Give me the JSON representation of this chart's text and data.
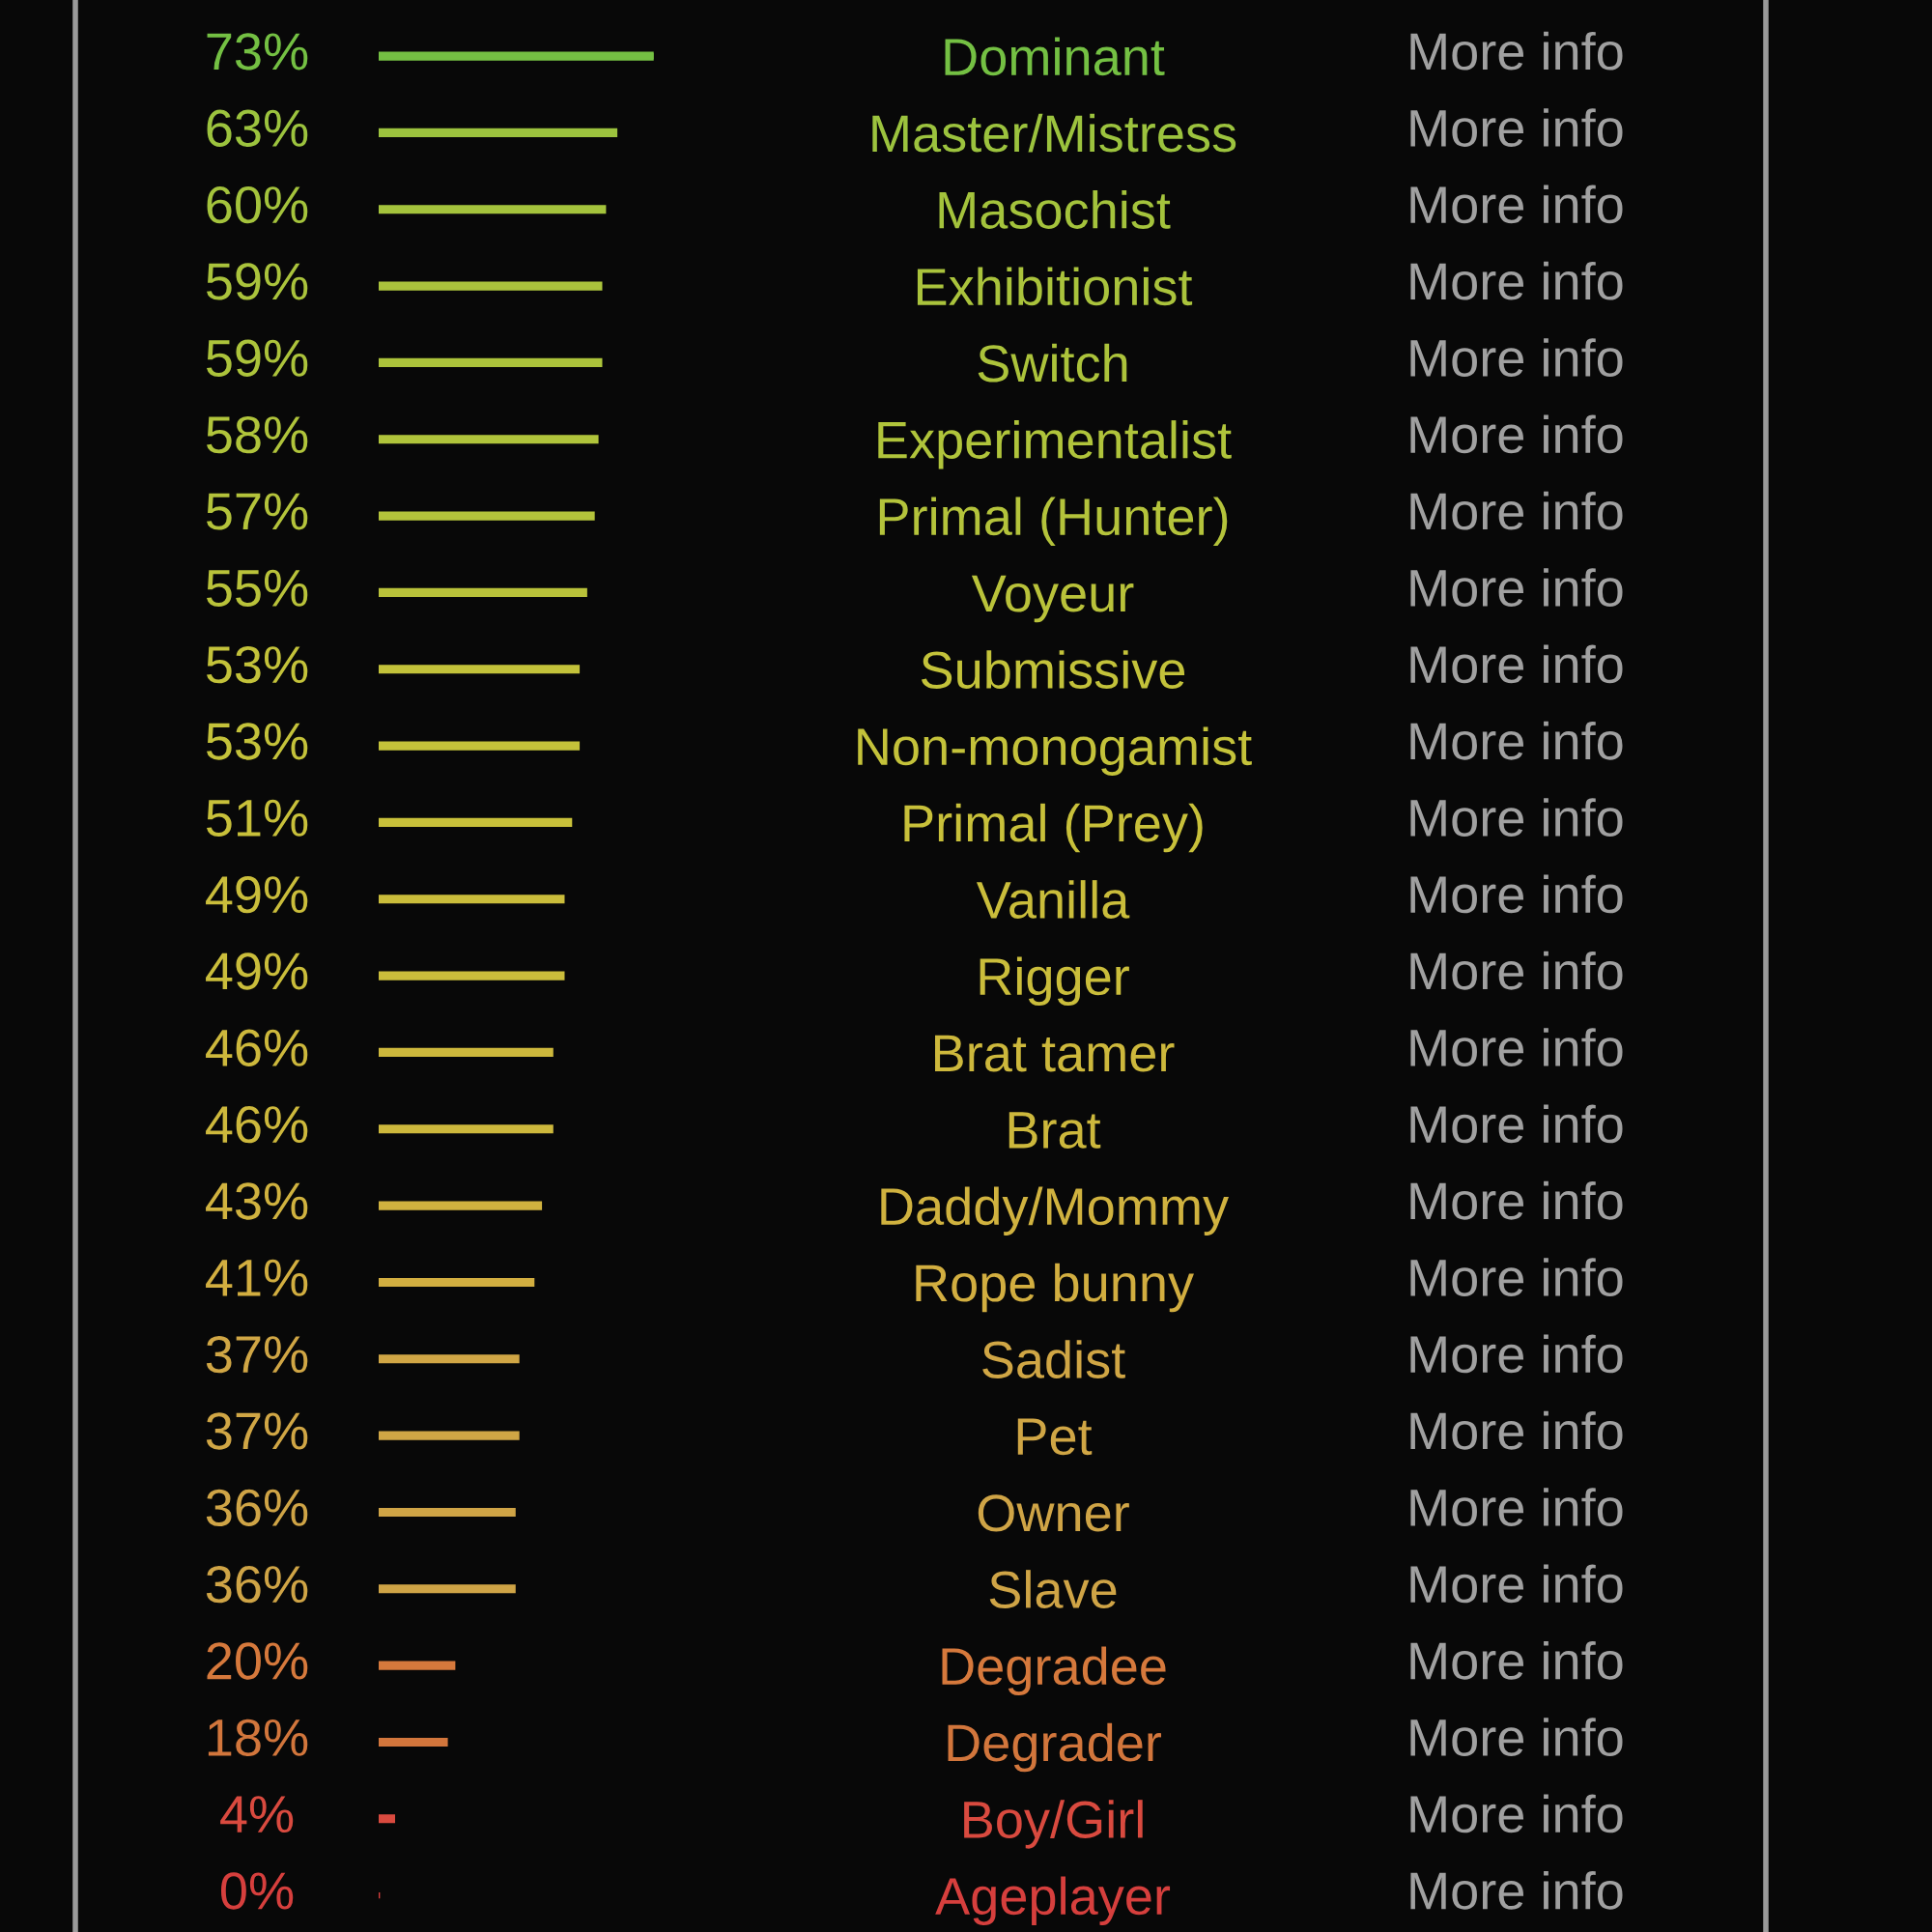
{
  "chart_data": {
    "type": "bar",
    "orientation": "horizontal",
    "tick_labels": "y",
    "grid": false,
    "legend": false,
    "categories": [
      "Dominant",
      "Master/Mistress",
      "Masochist",
      "Exhibitionist",
      "Switch",
      "Experimentalist",
      "Primal (Hunter)",
      "Voyeur",
      "Submissive",
      "Non-monogamist",
      "Primal (Prey)",
      "Vanilla",
      "Rigger",
      "Brat tamer",
      "Brat",
      "Daddy/Mommy",
      "Rope bunny",
      "Sadist",
      "Pet",
      "Owner",
      "Slave",
      "Degradee",
      "Degrader",
      "Boy/Girl",
      "Ageplayer"
    ],
    "values": [
      73,
      63,
      60,
      59,
      59,
      58,
      57,
      55,
      53,
      53,
      51,
      49,
      49,
      46,
      46,
      43,
      41,
      37,
      37,
      36,
      36,
      20,
      18,
      4,
      0
    ],
    "value_labels": [
      "73%",
      "63%",
      "60%",
      "59%",
      "59%",
      "58%",
      "57%",
      "55%",
      "53%",
      "53%",
      "51%",
      "49%",
      "49%",
      "46%",
      "46%",
      "43%",
      "41%",
      "37%",
      "37%",
      "36%",
      "36%",
      "20%",
      "18%",
      "4%",
      "0%"
    ],
    "colors": [
      "#74c043",
      "#9cc33e",
      "#a4c33c",
      "#aac33c",
      "#acc33b",
      "#b0c43b",
      "#b4c33b",
      "#b9c23a",
      "#c3c23a",
      "#c4c23a",
      "#c8c03a",
      "#cabd3b",
      "#cabd3b",
      "#cdb83c",
      "#cdb83c",
      "#d0b23f",
      "#d2ae40",
      "#d0a645",
      "#d0a645",
      "#cfa446",
      "#cfa446",
      "#d6793c",
      "#d2763c",
      "#d94a3f",
      "#d63f3d"
    ],
    "annotations": [
      "More info",
      "More info",
      "More info",
      "More info",
      "More info",
      "More info",
      "More info",
      "More info",
      "More info",
      "More info",
      "More info",
      "More info",
      "More info",
      "More info",
      "More info",
      "More info",
      "More info",
      "More info",
      "More info",
      "More info",
      "More info",
      "More info",
      "More info",
      "More info",
      "More info"
    ]
  }
}
